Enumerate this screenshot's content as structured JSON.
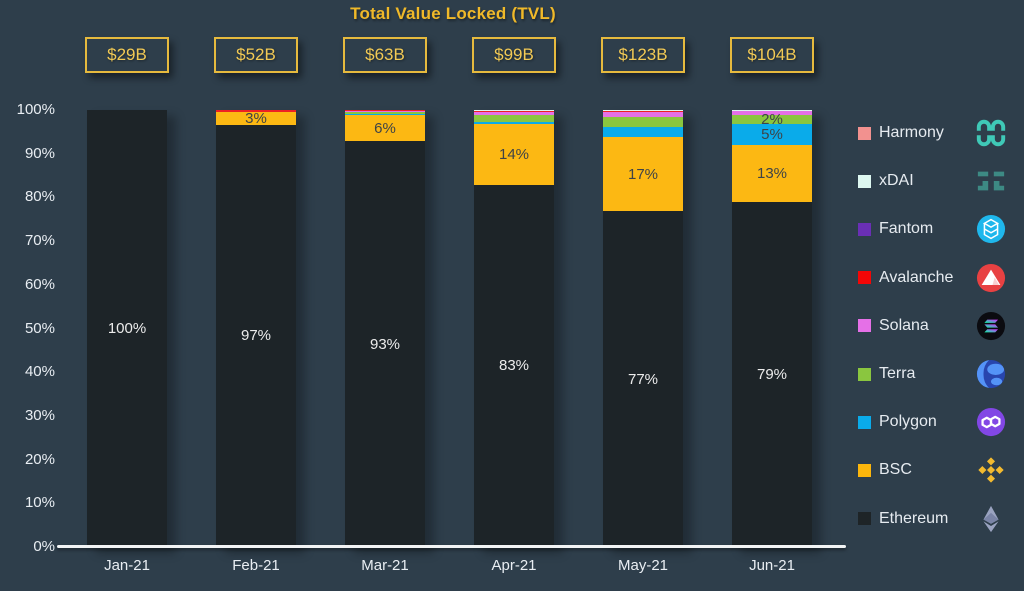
{
  "title": "Total Value Locked (TVL)",
  "colors": {
    "background": "#2e3e4b",
    "accent_gold": "#f0b929",
    "badge_border": "#e6ba3e",
    "badge_text": "#f2ca55",
    "axis_line": "#f2f4f5",
    "tick_text": "#e9eef3"
  },
  "chart_data": {
    "type": "bar",
    "subtype": "100%-stacked-bar",
    "title": "Total Value Locked (TVL)",
    "categories": [
      "Jan-21",
      "Feb-21",
      "Mar-21",
      "Apr-21",
      "May-21",
      "Jun-21"
    ],
    "totals": [
      "$29B",
      "$52B",
      "$63B",
      "$99B",
      "$123B",
      "$104B"
    ],
    "y_ticks": [
      "100%",
      "90%",
      "80%",
      "70%",
      "60%",
      "50%",
      "40%",
      "30%",
      "20%",
      "10%",
      "0%"
    ],
    "ylim": [
      0,
      100
    ],
    "grid": false,
    "legend_position": "right",
    "series": [
      {
        "name": "Ethereum",
        "color": "#1d2428",
        "label_color": "#ececec",
        "values": [
          100,
          96.6,
          92.8,
          82.9,
          76.8,
          78.9
        ],
        "labels": [
          "100%",
          "97%",
          "93%",
          "83%",
          "77%",
          "79%"
        ]
      },
      {
        "name": "BSC",
        "color": "#fcb813",
        "label_color": "#3e4347",
        "values": [
          0,
          3.0,
          6.0,
          14.0,
          17.0,
          13.0
        ],
        "labels": [
          null,
          "3%",
          "6%",
          "14%",
          "17%",
          "13%"
        ]
      },
      {
        "name": "Polygon",
        "color": "#0aabea",
        "label_color": "#3e4347",
        "values": [
          0,
          0,
          0.2,
          0.3,
          2.4,
          5.0
        ],
        "labels": [
          null,
          null,
          null,
          null,
          null,
          "5%"
        ]
      },
      {
        "name": "Terra",
        "color": "#8ac63f",
        "label_color": "#3e4347",
        "values": [
          0,
          0,
          0.5,
          1.7,
          2.2,
          2.0
        ],
        "labels": [
          null,
          null,
          null,
          null,
          null,
          "2%"
        ]
      },
      {
        "name": "Solana",
        "color": "#e570e7",
        "label_color": "#3e4347",
        "values": [
          0,
          0,
          0.2,
          0.7,
          1.1,
          0.8
        ],
        "labels": [
          null,
          null,
          null,
          null,
          null,
          null
        ]
      },
      {
        "name": "Avalanche",
        "color": "#ed2024",
        "label_color": "#3e4347",
        "values": [
          0,
          0.4,
          0.3,
          0.1,
          0.2,
          0.1
        ],
        "labels": [
          null,
          null,
          null,
          null,
          null,
          null
        ]
      },
      {
        "name": "Fantom",
        "color": "#6a2fb5",
        "label_color": "#3e4347",
        "values": [
          0,
          0,
          0,
          0.1,
          0.2,
          0.1
        ],
        "labels": [
          null,
          null,
          null,
          null,
          null,
          null
        ]
      },
      {
        "name": "xDAI",
        "color": "#ddf7f0",
        "label_color": "#3e4347",
        "values": [
          0,
          0,
          0,
          0.2,
          0.1,
          0.1
        ],
        "labels": [
          null,
          null,
          null,
          null,
          null,
          null
        ]
      },
      {
        "name": "Harmony",
        "color": "#f2918f",
        "label_color": "#3e4347",
        "values": [
          0,
          0,
          0,
          0,
          0,
          0
        ],
        "labels": [
          null,
          null,
          null,
          null,
          null,
          null
        ]
      }
    ]
  },
  "legend": {
    "items": [
      {
        "label": "Harmony",
        "swatch": "#f2918f",
        "icon": "harmony-icon"
      },
      {
        "label": "xDAI",
        "swatch": "#ddf7f0",
        "icon": "xdai-icon"
      },
      {
        "label": "Fantom",
        "swatch": "#6a2fb5",
        "icon": "fantom-icon"
      },
      {
        "label": "Avalanche",
        "swatch": "#f40606",
        "icon": "avalanche-icon"
      },
      {
        "label": "Solana",
        "swatch": "#e570e7",
        "icon": "solana-icon"
      },
      {
        "label": "Terra",
        "swatch": "#8ac63f",
        "icon": "terra-icon"
      },
      {
        "label": "Polygon",
        "swatch": "#0aabea",
        "icon": "polygon-icon"
      },
      {
        "label": "BSC",
        "swatch": "#fcb60c",
        "icon": "bsc-icon"
      },
      {
        "label": "Ethereum",
        "swatch": "#1e2427",
        "icon": "ethereum-icon"
      }
    ]
  }
}
